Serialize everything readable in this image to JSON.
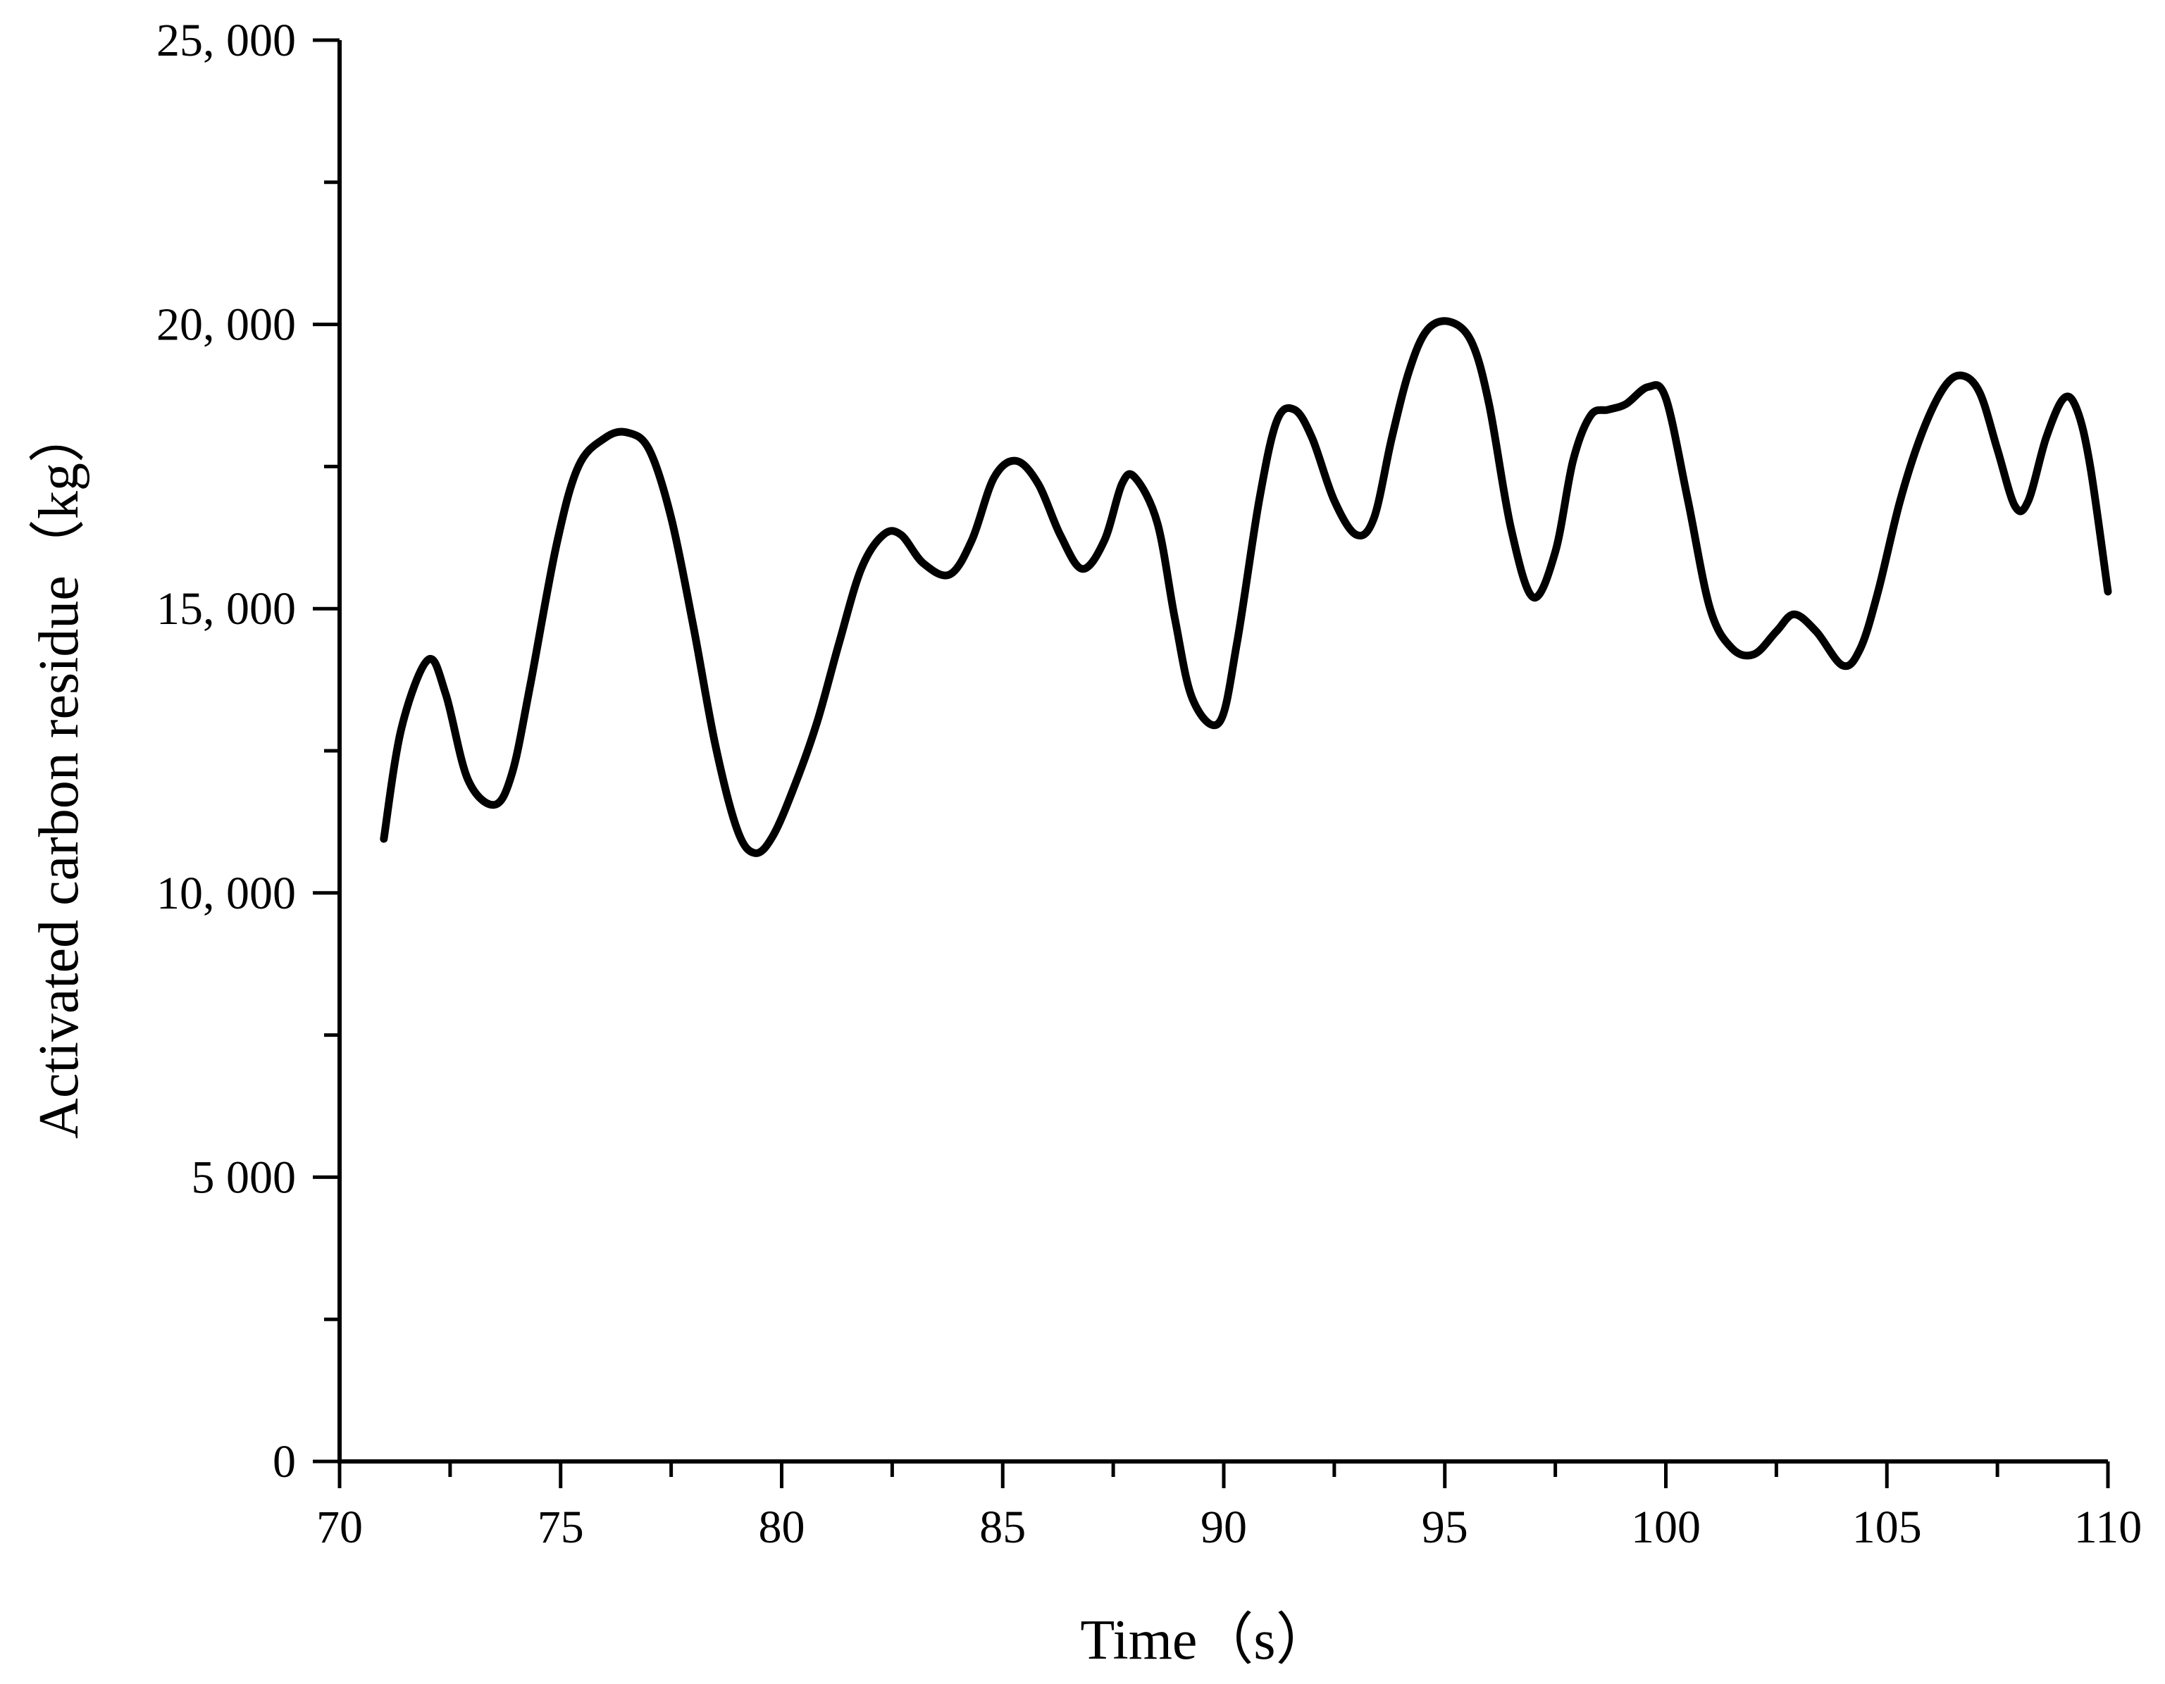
{
  "chart_data": {
    "type": "line",
    "title": "",
    "xlabel": "Time（s）",
    "ylabel": "Activated carbon residue（kg）",
    "xlim": [
      70,
      110
    ],
    "ylim": [
      0,
      25000
    ],
    "grid": false,
    "legend": "none",
    "line_color": "#000000",
    "x_ticks": [
      {
        "value": 70,
        "label": "70"
      },
      {
        "value": 75,
        "label": "75"
      },
      {
        "value": 80,
        "label": "80"
      },
      {
        "value": 85,
        "label": "85"
      },
      {
        "value": 90,
        "label": "90"
      },
      {
        "value": 95,
        "label": "95"
      },
      {
        "value": 100,
        "label": "100"
      },
      {
        "value": 105,
        "label": "105"
      },
      {
        "value": 110,
        "label": "110"
      }
    ],
    "x_minor_ticks": [
      72.5,
      77.5,
      82.5,
      87.5,
      92.5,
      97.5,
      102.5,
      107.5
    ],
    "y_ticks": [
      {
        "value": 0,
        "label": "0"
      },
      {
        "value": 5000,
        "label": "5 000"
      },
      {
        "value": 10000,
        "label": "10, 000"
      },
      {
        "value": 15000,
        "label": "15, 000"
      },
      {
        "value": 20000,
        "label": "20, 000"
      },
      {
        "value": 25000,
        "label": "25, 000"
      }
    ],
    "y_minor_ticks": [
      2500,
      7500,
      12500,
      17500,
      22500
    ],
    "series": [
      {
        "x": [
          71.0,
          71.4,
          72.0,
          72.4,
          72.9,
          73.5,
          73.9,
          74.3,
          74.9,
          75.4,
          76.0,
          76.5,
          77.0,
          77.5,
          78.0,
          78.5,
          79.0,
          79.4,
          79.8,
          80.3,
          80.8,
          81.3,
          81.8,
          82.3,
          82.7,
          83.2,
          83.8,
          84.3,
          84.8,
          85.3,
          85.8,
          86.3,
          86.8,
          87.3,
          87.7,
          88.0,
          88.5,
          88.9,
          89.3,
          89.9,
          90.3,
          90.8,
          91.2,
          91.6,
          92.0,
          92.5,
          93.0,
          93.4,
          93.8,
          94.2,
          94.6,
          95.1,
          95.6,
          96.0,
          96.5,
          97.0,
          97.5,
          97.9,
          98.3,
          98.7,
          99.1,
          99.6,
          100.0,
          100.5,
          101.0,
          101.5,
          102.0,
          102.5,
          102.9,
          103.4,
          104.0,
          104.4,
          104.8,
          105.3,
          105.8,
          106.3,
          106.7,
          107.1,
          107.5,
          107.9,
          108.2,
          108.6,
          109.0,
          109.3,
          109.6,
          110.0
        ],
        "y": [
          10950,
          12900,
          14100,
          13500,
          12000,
          11550,
          12100,
          13600,
          16100,
          17500,
          18000,
          18100,
          17800,
          16600,
          14700,
          12600,
          11100,
          10700,
          11000,
          11900,
          13000,
          14400,
          15700,
          16300,
          16300,
          15800,
          15600,
          16200,
          17300,
          17600,
          17200,
          16300,
          15700,
          16200,
          17200,
          17300,
          16500,
          14800,
          13400,
          13000,
          14400,
          16900,
          18300,
          18500,
          18000,
          16900,
          16300,
          16600,
          18000,
          19200,
          19900,
          20050,
          19700,
          18600,
          16400,
          15200,
          16000,
          17600,
          18400,
          18500,
          18600,
          18900,
          18700,
          16900,
          15000,
          14300,
          14200,
          14600,
          14900,
          14600,
          14000,
          14300,
          15300,
          16900,
          18100,
          18900,
          19100,
          18800,
          17800,
          16800,
          16900,
          18000,
          18700,
          18500,
          17500,
          15300
        ]
      }
    ]
  }
}
